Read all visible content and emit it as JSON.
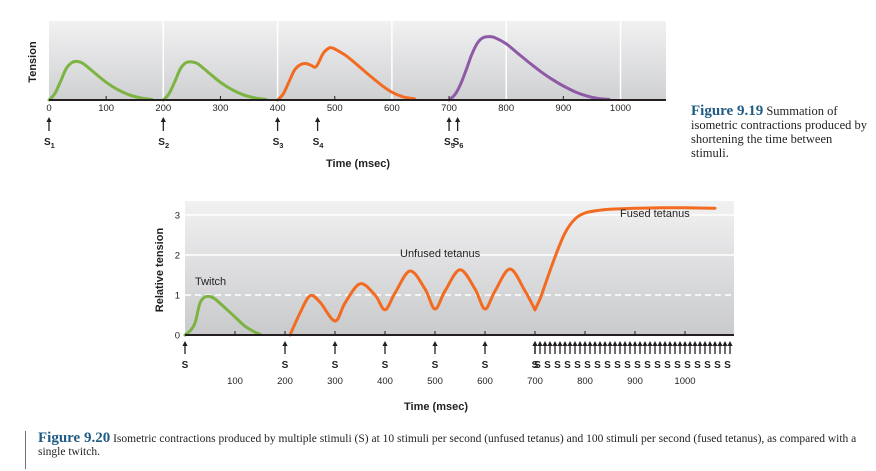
{
  "chart_data": [
    {
      "type": "line",
      "id": "figure-9-19",
      "title": "",
      "xlabel": "Time (msec)",
      "ylabel": "Tension",
      "xlim": [
        0,
        1050
      ],
      "x_ticks": [
        0,
        100,
        200,
        300,
        400,
        500,
        600,
        700,
        800,
        900,
        1000
      ],
      "x_tick_labels": [
        "0",
        "100",
        "200",
        "300",
        "400",
        "500",
        "600",
        "700",
        "800",
        "900",
        "1000"
      ],
      "vertical_dividers": [
        200,
        400,
        600,
        800,
        1000
      ],
      "y_ticks": [],
      "grid": false,
      "series": [
        {
          "name": "Single twitch 1",
          "color": "#7cb342",
          "x": [
            0,
            10,
            20,
            30,
            40,
            50,
            60,
            80,
            100,
            120,
            140,
            160,
            180
          ],
          "y": [
            0,
            0.12,
            0.35,
            0.6,
            0.72,
            0.74,
            0.7,
            0.52,
            0.34,
            0.2,
            0.1,
            0.04,
            0.01
          ]
        },
        {
          "name": "Single twitch 2",
          "color": "#7cb342",
          "x": [
            200,
            210,
            220,
            230,
            240,
            250,
            260,
            280,
            300,
            320,
            340,
            360,
            380
          ],
          "y": [
            0,
            0.12,
            0.35,
            0.6,
            0.72,
            0.73,
            0.7,
            0.52,
            0.34,
            0.2,
            0.1,
            0.04,
            0.01
          ]
        },
        {
          "name": "Summation (S3, S4)",
          "color": "#f26b21",
          "x": [
            400,
            410,
            420,
            430,
            440,
            450,
            460,
            465,
            470,
            480,
            490,
            495,
            500,
            520,
            540,
            560,
            580,
            600,
            620,
            640
          ],
          "y": [
            0,
            0.12,
            0.35,
            0.58,
            0.68,
            0.7,
            0.66,
            0.63,
            0.68,
            0.9,
            1.0,
            1.0,
            0.98,
            0.85,
            0.67,
            0.48,
            0.3,
            0.15,
            0.06,
            0.02
          ]
        },
        {
          "name": "Summation (S5, S6)",
          "color": "#8e5aa6",
          "x": [
            700,
            710,
            720,
            730,
            740,
            750,
            760,
            770,
            780,
            800,
            820,
            840,
            860,
            880,
            900,
            920,
            940,
            960,
            980
          ],
          "y": [
            0,
            0.1,
            0.3,
            0.58,
            0.88,
            1.1,
            1.2,
            1.22,
            1.2,
            1.08,
            0.9,
            0.72,
            0.55,
            0.4,
            0.27,
            0.16,
            0.08,
            0.03,
            0.01
          ]
        }
      ],
      "stimuli": [
        {
          "label": "S",
          "sub": "1",
          "x": 0
        },
        {
          "label": "S",
          "sub": "2",
          "x": 200
        },
        {
          "label": "S",
          "sub": "3",
          "x": 400
        },
        {
          "label": "S",
          "sub": "4",
          "x": 470
        },
        {
          "label": "S",
          "sub": "5",
          "x": 700
        },
        {
          "label": "S",
          "sub": "6",
          "x": 715
        }
      ]
    },
    {
      "type": "line",
      "id": "figure-9-20",
      "title": "",
      "xlabel": "Time (msec)",
      "ylabel": "Relative tension",
      "xlim": [
        0,
        1100
      ],
      "ylim": [
        0,
        3.3
      ],
      "x_ticks": [
        100,
        200,
        300,
        400,
        500,
        600,
        700,
        800,
        900,
        1000
      ],
      "x_tick_labels": [
        "100",
        "200",
        "300",
        "400",
        "500",
        "600",
        "700",
        "800",
        "900",
        "1000"
      ],
      "y_ticks": [
        0,
        1,
        2,
        3
      ],
      "y_tick_labels": [
        "0",
        "1",
        "2",
        "3"
      ],
      "grid": true,
      "reference_line": {
        "y": 1,
        "style": "dashed"
      },
      "annotations": [
        {
          "text": "Twitch",
          "x": 20,
          "y": 1.25
        },
        {
          "text": "Unfused tetanus",
          "x": 430,
          "y": 1.95
        },
        {
          "text": "Fused tetanus",
          "x": 870,
          "y": 2.95
        }
      ],
      "series": [
        {
          "name": "Twitch",
          "color": "#7cb342",
          "x": [
            0,
            10,
            20,
            30,
            40,
            50,
            60,
            80,
            100,
            120,
            140,
            150
          ],
          "y": [
            0,
            0.1,
            0.3,
            0.8,
            0.95,
            0.96,
            0.9,
            0.68,
            0.45,
            0.22,
            0.07,
            0.02
          ]
        },
        {
          "name": "Unfused tetanus",
          "color": "#f26b21",
          "x": [
            210,
            230,
            250,
            270,
            300,
            320,
            350,
            380,
            400,
            420,
            450,
            480,
            500,
            520,
            550,
            580,
            600,
            620,
            650,
            680,
            700
          ],
          "y": [
            0,
            0.55,
            0.98,
            0.82,
            0.35,
            0.8,
            1.28,
            1.0,
            0.63,
            1.05,
            1.6,
            1.15,
            0.65,
            1.1,
            1.63,
            1.15,
            0.65,
            1.1,
            1.65,
            1.1,
            0.63
          ]
        },
        {
          "name": "Fused tetanus",
          "color": "#f26b21",
          "x": [
            700,
            710,
            720,
            740,
            760,
            780,
            800,
            830,
            860,
            900,
            950,
            1000,
            1060
          ],
          "y": [
            0.63,
            0.9,
            1.25,
            1.95,
            2.55,
            2.9,
            3.05,
            3.12,
            3.15,
            3.17,
            3.18,
            3.18,
            3.17
          ]
        }
      ],
      "stimuli_single": [
        0,
        200,
        300,
        400,
        500,
        600,
        700
      ],
      "stimuli_fused_range": [
        700,
        1090
      ],
      "stimuli_fused_interval": 10,
      "stimulus_label": "S"
    }
  ],
  "captions": {
    "fig19_title": "Figure 9.19",
    "fig19_text": "Summation of isometric contractions produced by shortening the time between stimuli.",
    "fig20_title": "Figure 9.20",
    "fig20_text": "Isometric contractions produced by multiple stimuli (S) at 10 stimuli per second (unfused tetanus) and 100 stimuli per second (fused tetanus), as compared with a single twitch."
  }
}
